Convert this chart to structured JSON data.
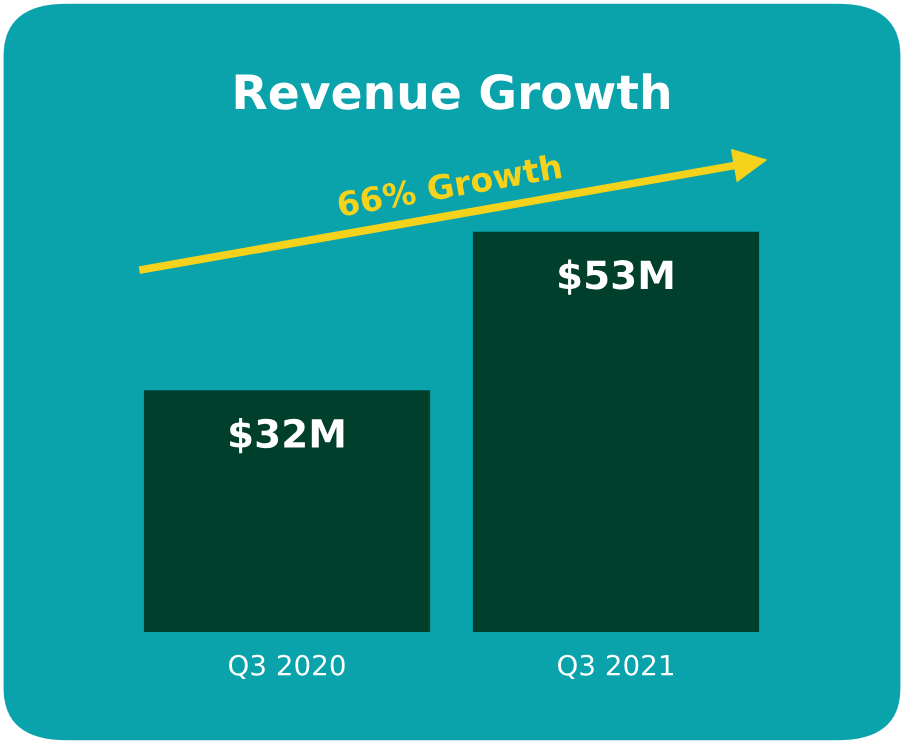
{
  "chart_data": {
    "type": "bar",
    "title": "Revenue Growth",
    "categories": [
      "Q3 2020",
      "Q3 2021"
    ],
    "values": [
      32,
      53
    ],
    "value_labels": [
      "$32M",
      "$53M"
    ],
    "color": "#003f2b",
    "annotations": [
      "66% Growth"
    ],
    "grid": false,
    "legend": false,
    "tick_labels": "x"
  }
}
